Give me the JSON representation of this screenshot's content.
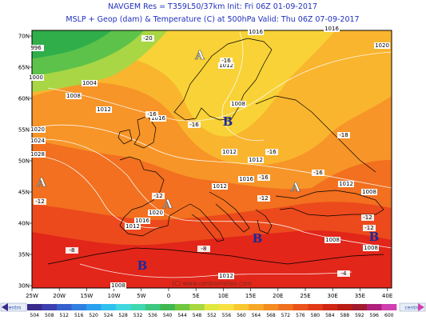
{
  "header": {
    "line1": "NAVGEM  Res = T359L50/37km   Init: Fri 06Z 01-09-2017",
    "line2": "MSLP + Geop (dam) & Temperature (C) at 500hPa  Valid: Thu 06Z 07-09-2017"
  },
  "lat_labels": [
    "70N",
    "65N",
    "60N",
    "55N",
    "50N",
    "45N",
    "40N",
    "35N",
    "30N"
  ],
  "lon_labels": [
    "25W",
    "20W",
    "15W",
    "10W",
    "5W",
    "0",
    "5E",
    "10E",
    "15E",
    "20E",
    "25E",
    "30E",
    "35E",
    "40E"
  ],
  "pressure_labels": [
    "1016",
    "1016",
    "1020",
    "996",
    "1000",
    "1004",
    "1008",
    "1012",
    "1016",
    "1012",
    "1008",
    "1012",
    "1012",
    "1020",
    "1024",
    "1028",
    "1016",
    "1012",
    "1012",
    "1008",
    "1020",
    "1016",
    "1012",
    "1008",
    "1008",
    "1008",
    "1012"
  ],
  "temperature_labels": [
    "-20",
    "-16",
    "-16",
    "-16",
    "-16",
    "-18",
    "-16",
    "-16",
    "-12",
    "-12",
    "-12",
    "-12",
    "-12",
    "-8",
    "-8",
    "-4"
  ],
  "centers": [
    "A",
    "B",
    "A",
    "A",
    "A",
    "B",
    "B",
    "B"
  ],
  "watermark": "(C) www.centrometeo.com",
  "logo": "centro",
  "colorbar": {
    "labels": [
      504,
      508,
      512,
      516,
      520,
      524,
      528,
      532,
      536,
      540,
      544,
      548,
      552,
      556,
      560,
      564,
      568,
      572,
      576,
      580,
      584,
      588,
      592,
      596,
      600
    ],
    "colors": [
      "#3a2a8c",
      "#3d3fb0",
      "#3560cc",
      "#2f80e0",
      "#2aa0f0",
      "#30c0f0",
      "#40d8e0",
      "#40d8b0",
      "#3cc880",
      "#40b850",
      "#70c840",
      "#a8d840",
      "#e0e840",
      "#f8e040",
      "#f8c830",
      "#f8a828",
      "#f58c22",
      "#f0701e",
      "#ea541a",
      "#e23a16",
      "#d22614",
      "#b81c14",
      "#a01a30",
      "#b0207a",
      "#d040b0"
    ]
  }
}
